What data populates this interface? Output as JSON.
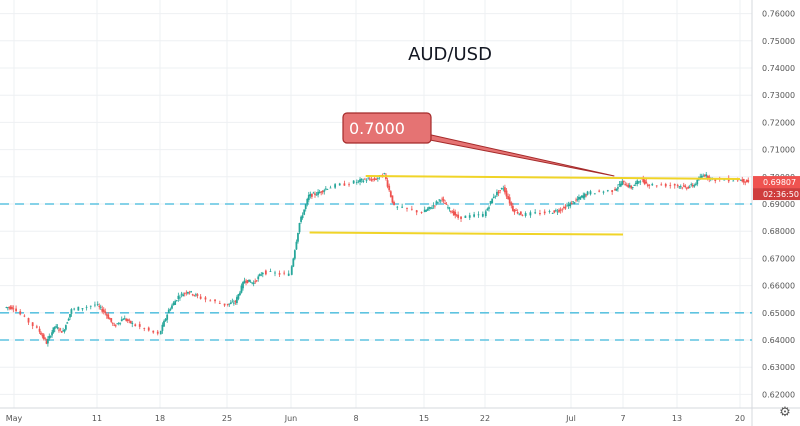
{
  "chart_data": {
    "type": "candlestick",
    "title": "AUD/USD",
    "x_axis": {
      "tick_labels": [
        "May",
        "11",
        "18",
        "25",
        "Jun",
        "8",
        "15",
        "22",
        "Jul",
        "7",
        "13",
        "20"
      ]
    },
    "y_axis": {
      "range": [
        0.615,
        0.765
      ],
      "tick_labels": [
        "0.76000",
        "0.75000",
        "0.74000",
        "0.73000",
        "0.72000",
        "0.71000",
        "0.70000",
        "0.69000",
        "0.68000",
        "0.67000",
        "0.66000",
        "0.65000",
        "0.64000",
        "0.63000",
        "0.62000"
      ]
    },
    "grid": true,
    "current_price_label": "0.69807",
    "countdown_label": "02:36:50",
    "callout_label": "0.7000",
    "horizontal_levels_dashed": [
      0.69,
      0.65,
      0.64
    ],
    "resistance_line": {
      "level": 0.7003,
      "from": "Jun 9",
      "to": "Jul 20"
    },
    "support_line": {
      "level": 0.6795,
      "from": "Jun 3",
      "to": "Jul 7"
    },
    "daily_closes": [
      {
        "date": "Apr 30",
        "close": 0.652
      },
      {
        "date": "May 1",
        "close": 0.644
      },
      {
        "date": "May 4",
        "close": 0.639
      },
      {
        "date": "May 5",
        "close": 0.645
      },
      {
        "date": "May 6",
        "close": 0.643
      },
      {
        "date": "May 7",
        "close": 0.651
      },
      {
        "date": "May 8",
        "close": 0.653
      },
      {
        "date": "May 11",
        "close": 0.65
      },
      {
        "date": "May 12",
        "close": 0.645
      },
      {
        "date": "May 13",
        "close": 0.648
      },
      {
        "date": "May 14",
        "close": 0.646
      },
      {
        "date": "May 15",
        "close": 0.642
      },
      {
        "date": "May 18",
        "close": 0.651
      },
      {
        "date": "May 19",
        "close": 0.656
      },
      {
        "date": "May 20",
        "close": 0.658
      },
      {
        "date": "May 21",
        "close": 0.656
      },
      {
        "date": "May 22",
        "close": 0.653
      },
      {
        "date": "May 25",
        "close": 0.654
      },
      {
        "date": "May 26",
        "close": 0.662
      },
      {
        "date": "May 27",
        "close": 0.661
      },
      {
        "date": "May 28",
        "close": 0.665
      },
      {
        "date": "May 29",
        "close": 0.664
      },
      {
        "date": "Jun 1",
        "close": 0.683
      },
      {
        "date": "Jun 2",
        "close": 0.693
      },
      {
        "date": "Jun 3",
        "close": 0.694
      },
      {
        "date": "Jun 4",
        "close": 0.696
      },
      {
        "date": "Jun 5",
        "close": 0.698
      },
      {
        "date": "Jun 8",
        "close": 0.699
      },
      {
        "date": "Jun 9",
        "close": 0.699
      },
      {
        "date": "Jun 10",
        "close": 0.701
      },
      {
        "date": "Jun 11",
        "close": 0.689
      },
      {
        "date": "Jun 12",
        "close": 0.687
      },
      {
        "date": "Jun 15",
        "close": 0.689
      },
      {
        "date": "Jun 16",
        "close": 0.692
      },
      {
        "date": "Jun 17",
        "close": 0.688
      },
      {
        "date": "Jun 18",
        "close": 0.685
      },
      {
        "date": "Jun 19",
        "close": 0.686
      },
      {
        "date": "Jun 22",
        "close": 0.693
      },
      {
        "date": "Jun 23",
        "close": 0.696
      },
      {
        "date": "Jun 24",
        "close": 0.688
      },
      {
        "date": "Jun 25",
        "close": 0.686
      },
      {
        "date": "Jun 26",
        "close": 0.687
      },
      {
        "date": "Jun 29",
        "close": 0.688
      },
      {
        "date": "Jun 30",
        "close": 0.69
      },
      {
        "date": "Jul 1",
        "close": 0.692
      },
      {
        "date": "Jul 2",
        "close": 0.694
      },
      {
        "date": "Jul 3",
        "close": 0.695
      },
      {
        "date": "Jul 6",
        "close": 0.698
      },
      {
        "date": "Jul 7",
        "close": 0.696
      },
      {
        "date": "Jul 8",
        "close": 0.699
      },
      {
        "date": "Jul 9",
        "close": 0.697
      },
      {
        "date": "Jul 10",
        "close": 0.697
      },
      {
        "date": "Jul 13",
        "close": 0.696
      },
      {
        "date": "Jul 14",
        "close": 0.697
      },
      {
        "date": "Jul 15",
        "close": 0.701
      },
      {
        "date": "Jul 16",
        "close": 0.699
      },
      {
        "date": "Jul 17",
        "close": 0.699
      },
      {
        "date": "Jul 20",
        "close": 0.6981
      }
    ]
  },
  "colors": {
    "up": "#26a69a",
    "down": "#ef5350",
    "grid": "#eef0f3",
    "dashed_level": "#5ec3e0",
    "trend_line": "#f0d428",
    "callout_fill": "#e57373",
    "callout_border": "#a52a2a",
    "price_badge": "#ef5350",
    "countdown_badge": "#cf3d3d"
  },
  "icons": {
    "settings": "gear-icon"
  }
}
